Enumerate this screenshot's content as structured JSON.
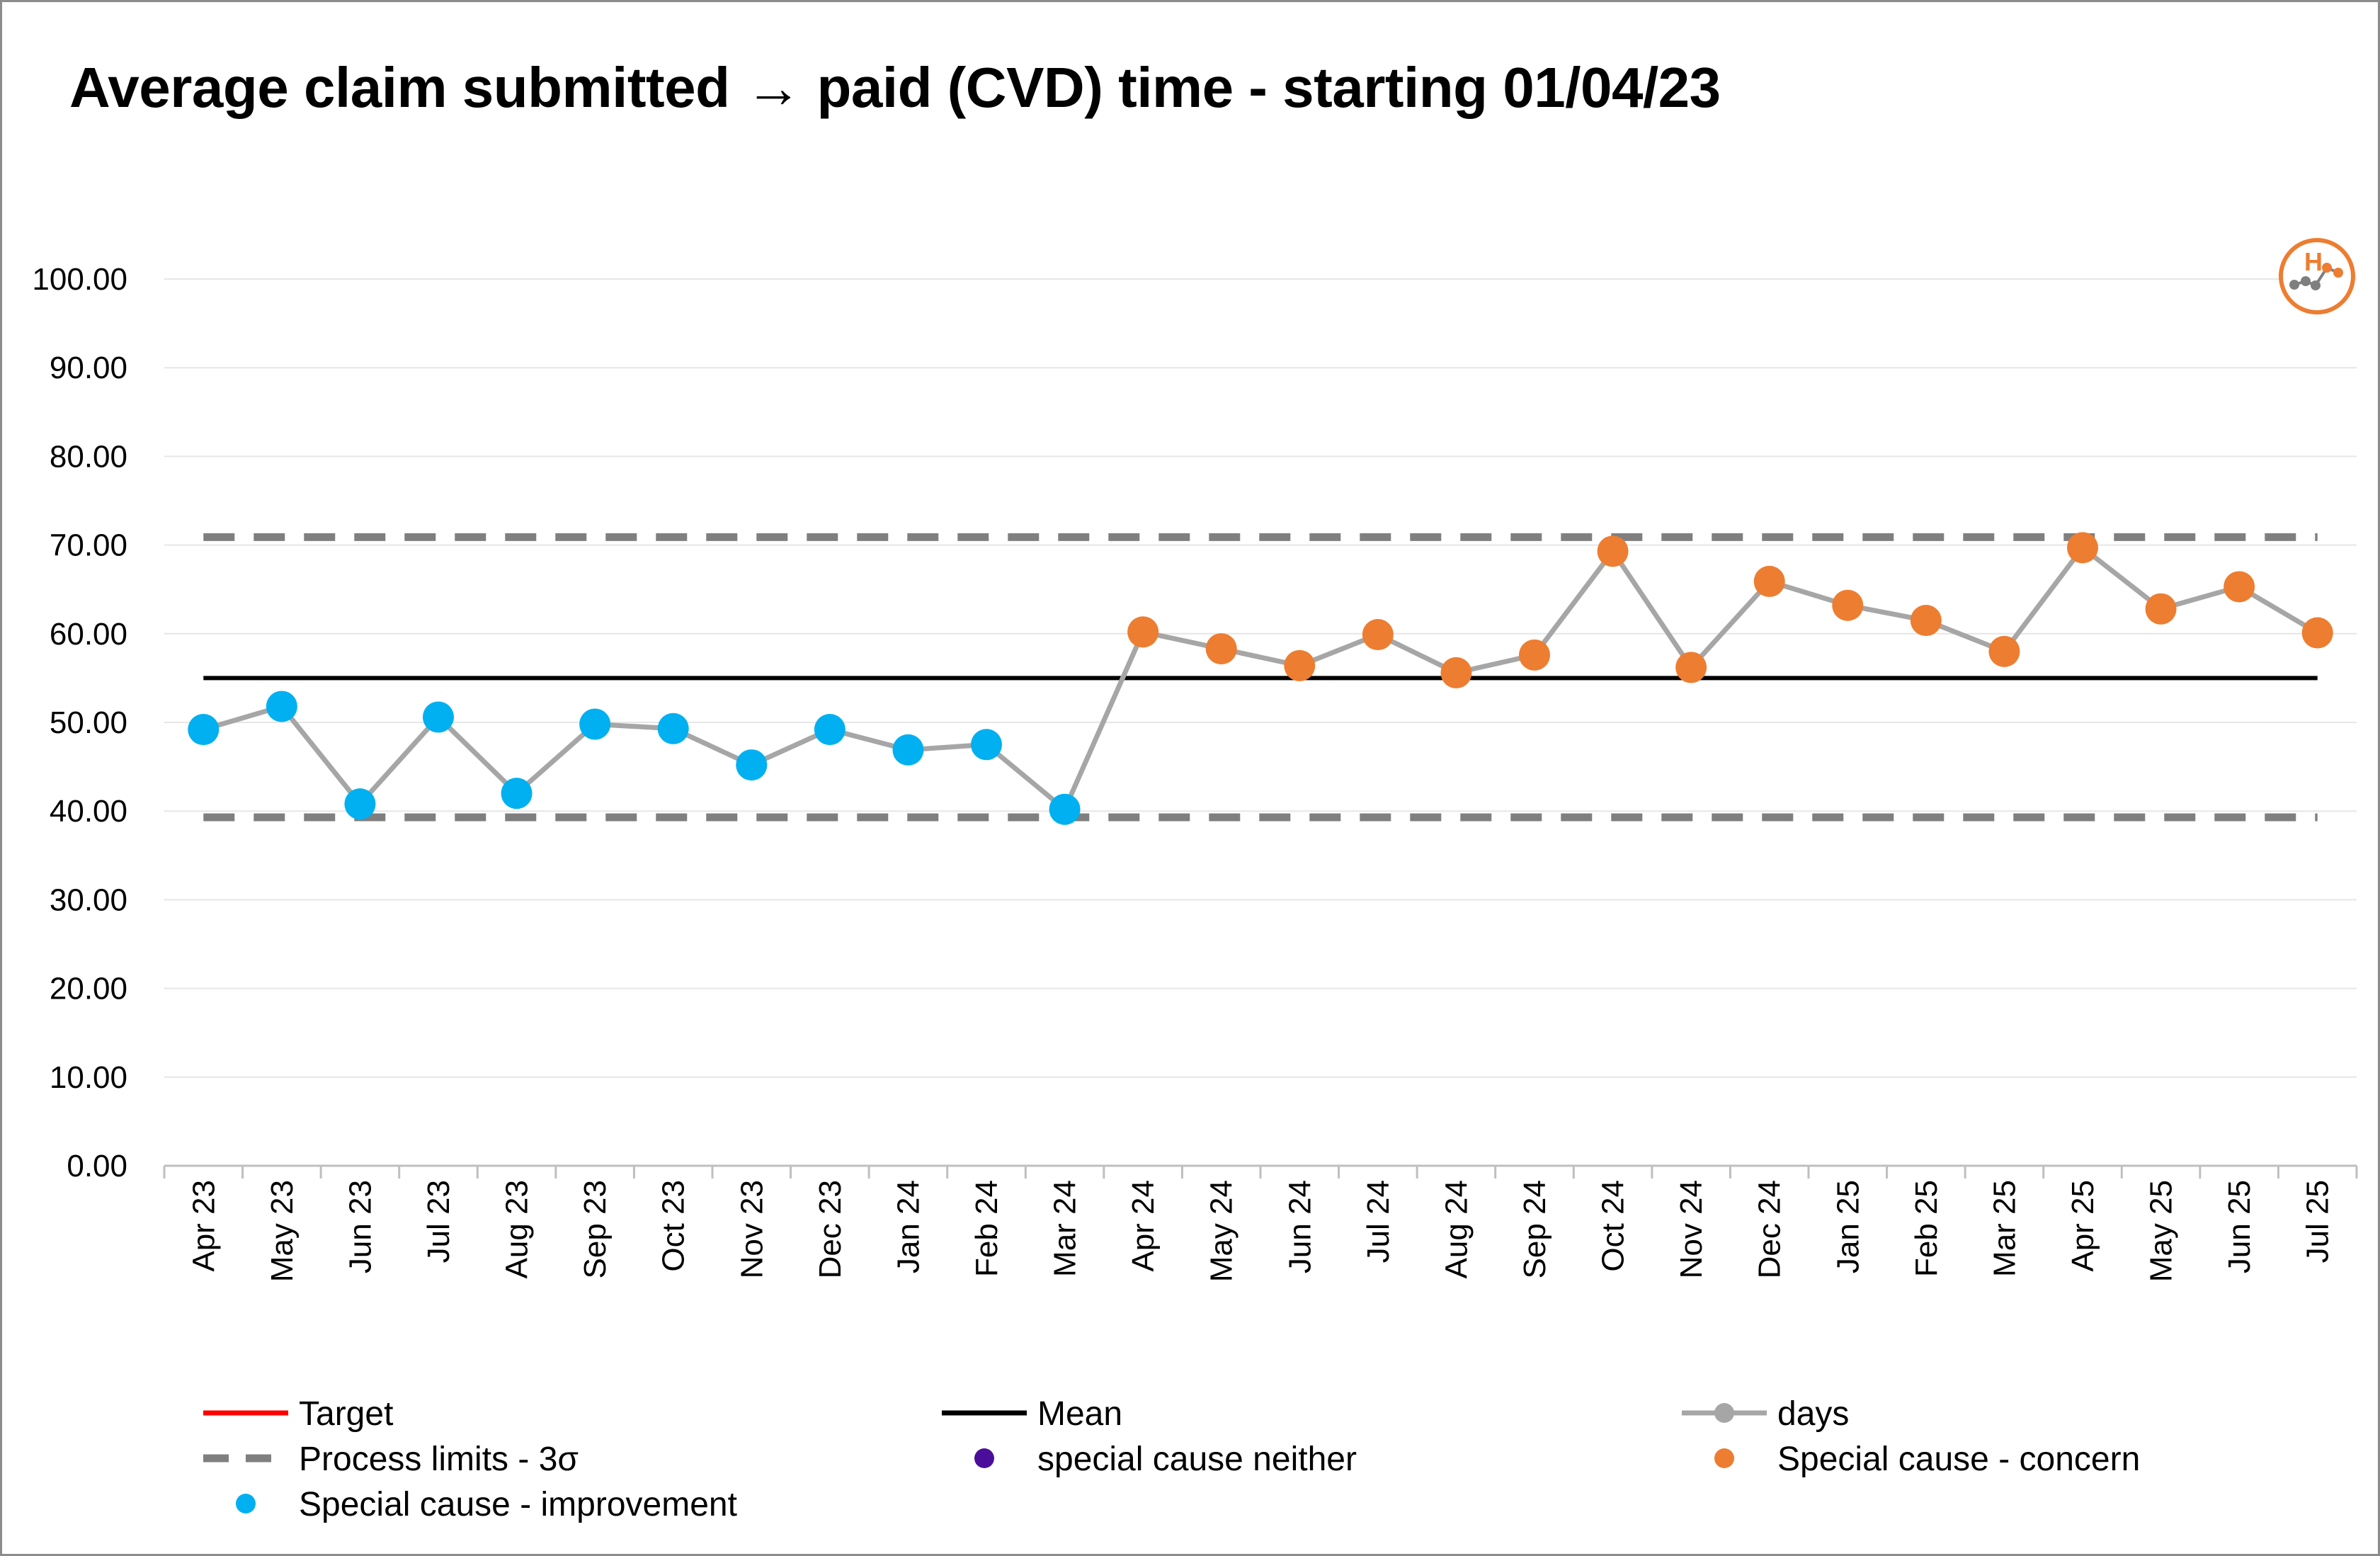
{
  "chart_data": {
    "type": "line",
    "title": "Average claim submitted → paid (CVD) time - starting 01/04/23",
    "xlabel": "",
    "ylabel": "",
    "ylim": [
      0,
      100
    ],
    "yticks": [
      "0.00",
      "10.00",
      "20.00",
      "30.00",
      "40.00",
      "50.00",
      "60.00",
      "70.00",
      "80.00",
      "90.00",
      "100.00"
    ],
    "grid": true,
    "legend_position": "bottom",
    "categories": [
      "Apr 23",
      "May 23",
      "Jun 23",
      "Jul 23",
      "Aug 23",
      "Sep 23",
      "Oct 23",
      "Nov 23",
      "Dec 23",
      "Jan 24",
      "Feb 24",
      "Mar 24",
      "Apr 24",
      "May 24",
      "Jun 24",
      "Jul 24",
      "Aug 24",
      "Sep 24",
      "Oct 24",
      "Nov 24",
      "Dec 24",
      "Jan 25",
      "Feb 25",
      "Mar 25",
      "Apr 25",
      "May 25",
      "Jun 25",
      "Jul 25"
    ],
    "series": [
      {
        "name": "days",
        "color": "#a6a6a6",
        "values": [
          49.2,
          51.8,
          40.8,
          50.6,
          42.0,
          49.8,
          49.3,
          45.2,
          49.2,
          46.9,
          47.5,
          40.2,
          60.2,
          58.3,
          56.4,
          59.9,
          55.6,
          57.6,
          69.3,
          56.2,
          65.9,
          63.2,
          61.5,
          58.0,
          69.7,
          62.8,
          65.3,
          60.1
        ],
        "point_status": [
          "improvement",
          "improvement",
          "improvement",
          "improvement",
          "improvement",
          "improvement",
          "improvement",
          "improvement",
          "improvement",
          "improvement",
          "improvement",
          "improvement",
          "concern",
          "concern",
          "concern",
          "concern",
          "concern",
          "concern",
          "concern",
          "concern",
          "concern",
          "concern",
          "concern",
          "concern",
          "concern",
          "concern",
          "concern",
          "concern"
        ]
      },
      {
        "name": "Mean",
        "color": "#000000",
        "value": 55.0
      },
      {
        "name": "Process limits - 3σ",
        "color": "#7f7f7f",
        "upper": 70.9,
        "lower": 39.3
      }
    ],
    "status_colors": {
      "improvement": "#00b0f0",
      "concern": "#ed7d31",
      "neither": "#4b0e9a"
    },
    "legend": [
      {
        "label": "Target",
        "kind": "line",
        "color": "#ff0000"
      },
      {
        "label": "Mean",
        "kind": "line",
        "color": "#000000"
      },
      {
        "label": "days",
        "kind": "line-marker",
        "color": "#a6a6a6"
      },
      {
        "label": "Process limits - 3σ",
        "kind": "dashed",
        "color": "#7f7f7f"
      },
      {
        "label": "special cause neither",
        "kind": "marker",
        "color": "#4b0e9a"
      },
      {
        "label": "Special cause - concern",
        "kind": "marker",
        "color": "#ed7d31"
      },
      {
        "label": "Special cause  - improvement",
        "kind": "marker",
        "color": "#00b0f0"
      }
    ],
    "badge": {
      "letter": "H",
      "color": "#ed7d31",
      "icon": "spc-variation-icon"
    }
  }
}
